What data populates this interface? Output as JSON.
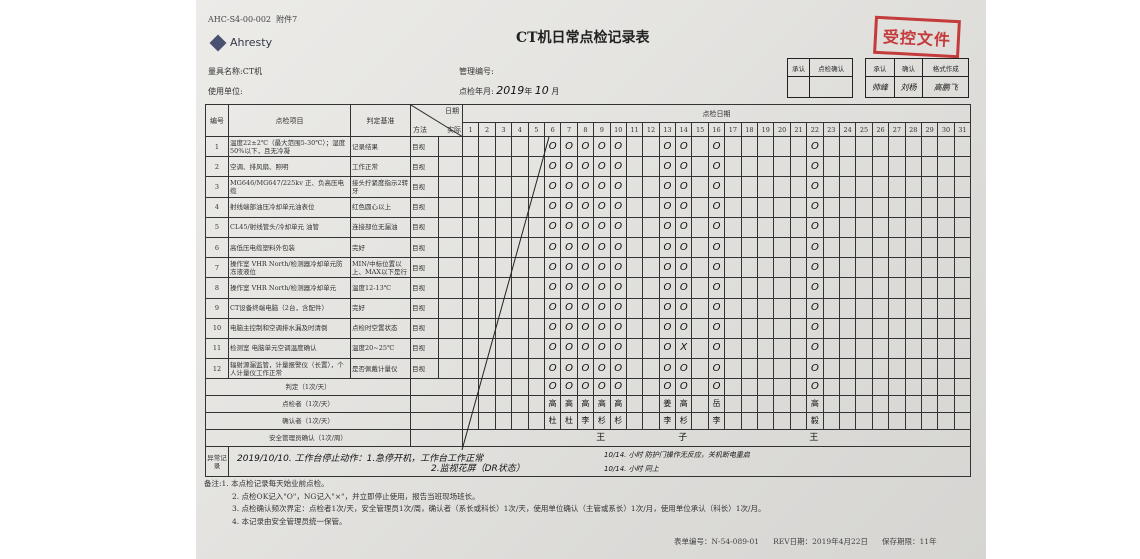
{
  "header": {
    "doc_code": "AHC-S4-00-002",
    "attachment": "附件7",
    "logo_text": "Ahresty",
    "title": "CT机日常点检记录表",
    "stamp": "受控文件",
    "equipment_label": "量具名称:",
    "equipment_value": "CT机",
    "unit_label": "使用单位:",
    "mgmt_no_label": "管理编号:",
    "month_label": "点检年月:",
    "month_value_year": "2019",
    "month_value_year_unit": "年",
    "month_value_month": "10",
    "month_value_month_unit": "月",
    "approval_box": {
      "approve": "承认",
      "check_confirm": "点检确认"
    },
    "format_box": {
      "approve": "承认",
      "confirm": "确认",
      "made_by": "格式作成",
      "approve_sig": "帅峰",
      "confirm_sig": "刘杨",
      "made_by_sig": "高鹏飞"
    }
  },
  "table": {
    "col_no": "编号",
    "col_item": "点检项目",
    "col_criterion": "判定基准",
    "col_date": "日期",
    "col_method": "方法",
    "col_actual": "实际",
    "col_days": "点检日期",
    "days": [
      "1",
      "2",
      "3",
      "4",
      "5",
      "6",
      "7",
      "8",
      "9",
      "10",
      "11",
      "12",
      "13",
      "14",
      "15",
      "16",
      "17",
      "18",
      "19",
      "20",
      "21",
      "22",
      "23",
      "24",
      "25",
      "26",
      "27",
      "28",
      "29",
      "30",
      "31"
    ],
    "items": [
      {
        "no": "1",
        "item": "温度22±2℃（最大范围5-30℃）；湿度50%以下，且无冷凝",
        "criterion": "记录结果",
        "method": "目视",
        "marks": [
          "",
          "",
          "",
          "",
          "",
          "O",
          "O",
          "O",
          "O",
          "O",
          "",
          "",
          "O",
          "O",
          "",
          "O",
          "",
          "",
          "",
          "",
          "",
          "O",
          "",
          "",
          "",
          "",
          "",
          "",
          "",
          "",
          ""
        ]
      },
      {
        "no": "2",
        "item": "空调、排风扇、照明",
        "criterion": "工作正常",
        "method": "目视",
        "marks": [
          "",
          "",
          "",
          "",
          "",
          "O",
          "O",
          "O",
          "O",
          "O",
          "",
          "",
          "O",
          "O",
          "",
          "O",
          "",
          "",
          "",
          "",
          "",
          "O",
          "",
          "",
          "",
          "",
          "",
          "",
          "",
          "",
          ""
        ]
      },
      {
        "no": "3",
        "item": "MG646/MG647/225kv 正、负高压电缆",
        "criterion": "接头拧紧度指示2转牙",
        "method": "目视",
        "marks": [
          "",
          "",
          "",
          "",
          "",
          "O",
          "O",
          "O",
          "O",
          "O",
          "",
          "",
          "O",
          "O",
          "",
          "O",
          "",
          "",
          "",
          "",
          "",
          "O",
          "",
          "",
          "",
          "",
          "",
          "",
          "",
          "",
          ""
        ]
      },
      {
        "no": "4",
        "item": "射线端部油压冷却单元油表位",
        "criterion": "红色圆心以上",
        "method": "目视",
        "marks": [
          "",
          "",
          "",
          "",
          "",
          "O",
          "O",
          "O",
          "O",
          "O",
          "",
          "",
          "O",
          "O",
          "",
          "O",
          "",
          "",
          "",
          "",
          "",
          "O",
          "",
          "",
          "",
          "",
          "",
          "",
          "",
          "",
          ""
        ]
      },
      {
        "no": "5",
        "item": "CL45/射线管头/冷却单元 油管",
        "criterion": "连接部位无漏油",
        "method": "目视",
        "marks": [
          "",
          "",
          "",
          "",
          "",
          "O",
          "O",
          "O",
          "O",
          "O",
          "",
          "",
          "O",
          "O",
          "",
          "O",
          "",
          "",
          "",
          "",
          "",
          "O",
          "",
          "",
          "",
          "",
          "",
          "",
          "",
          "",
          ""
        ]
      },
      {
        "no": "6",
        "item": "高低压电缆塑料外包装",
        "criterion": "完好",
        "method": "目视",
        "marks": [
          "",
          "",
          "",
          "",
          "",
          "O",
          "O",
          "O",
          "O",
          "O",
          "",
          "",
          "O",
          "O",
          "",
          "O",
          "",
          "",
          "",
          "",
          "",
          "O",
          "",
          "",
          "",
          "",
          "",
          "",
          "",
          "",
          ""
        ]
      },
      {
        "no": "7",
        "item": "操作室 VHR North/检测器冷却单元防冻液液位",
        "criterion": "MIN/中标位置以上、MAX以下是行",
        "method": "目视",
        "marks": [
          "",
          "",
          "",
          "",
          "",
          "O",
          "O",
          "O",
          "O",
          "O",
          "",
          "",
          "O",
          "O",
          "",
          "O",
          "",
          "",
          "",
          "",
          "",
          "O",
          "",
          "",
          "",
          "",
          "",
          "",
          "",
          "",
          ""
        ]
      },
      {
        "no": "8",
        "item": "操作室 VHR North/检测器冷却单元",
        "criterion": "温度12-13℃",
        "method": "目视",
        "marks": [
          "",
          "",
          "",
          "",
          "",
          "O",
          "O",
          "O",
          "O",
          "O",
          "",
          "",
          "O",
          "O",
          "",
          "O",
          "",
          "",
          "",
          "",
          "",
          "O",
          "",
          "",
          "",
          "",
          "",
          "",
          "",
          "",
          ""
        ]
      },
      {
        "no": "9",
        "item": "CT设备终端电脑（2台，含配件）",
        "criterion": "完好",
        "method": "目视",
        "marks": [
          "",
          "",
          "",
          "",
          "",
          "O",
          "O",
          "O",
          "O",
          "O",
          "",
          "",
          "O",
          "O",
          "",
          "O",
          "",
          "",
          "",
          "",
          "",
          "O",
          "",
          "",
          "",
          "",
          "",
          "",
          "",
          "",
          ""
        ]
      },
      {
        "no": "10",
        "item": "电脑主控制和空调排水漏及时清倒",
        "criterion": "点检时空置状态",
        "method": "目视",
        "marks": [
          "",
          "",
          "",
          "",
          "",
          "O",
          "O",
          "O",
          "O",
          "O",
          "",
          "",
          "O",
          "O",
          "",
          "O",
          "",
          "",
          "",
          "",
          "",
          "O",
          "",
          "",
          "",
          "",
          "",
          "",
          "",
          "",
          ""
        ]
      },
      {
        "no": "11",
        "item": "检测室 电脑单元空调温度确认",
        "criterion": "温度20~25℃",
        "method": "目视",
        "marks": [
          "",
          "",
          "",
          "",
          "",
          "O",
          "O",
          "O",
          "O",
          "O",
          "",
          "",
          "O",
          "X",
          "",
          "O",
          "",
          "",
          "",
          "",
          "",
          "O",
          "",
          "",
          "",
          "",
          "",
          "",
          "",
          "",
          ""
        ]
      },
      {
        "no": "12",
        "item": "辐射源漏监管，计量报警仪（长置），个人计量仪工作正常",
        "criterion": "是否佩戴计量仪",
        "method": "目视",
        "marks": [
          "",
          "",
          "",
          "",
          "",
          "O",
          "O",
          "O",
          "O",
          "O",
          "",
          "",
          "O",
          "O",
          "",
          "O",
          "",
          "",
          "",
          "",
          "",
          "O",
          "",
          "",
          "",
          "",
          "",
          "",
          "",
          "",
          ""
        ]
      }
    ],
    "summary": [
      {
        "label": "判定（1次/天）",
        "marks": [
          "",
          "",
          "",
          "",
          "",
          "O",
          "O",
          "O",
          "O",
          "O",
          "",
          "",
          "O",
          "O",
          "",
          "O",
          "",
          "",
          "",
          "",
          "",
          "O",
          "",
          "",
          "",
          "",
          "",
          "",
          "",
          "",
          ""
        ]
      },
      {
        "label": "点检者（1次/天）",
        "marks": [
          "",
          "",
          "",
          "",
          "",
          "高",
          "高",
          "高",
          "高",
          "高",
          "",
          "",
          "姜",
          "高",
          "",
          "岳",
          "",
          "",
          "",
          "",
          "",
          "高",
          "",
          "",
          "",
          "",
          "",
          "",
          "",
          "",
          ""
        ]
      },
      {
        "label": "确认者（1次/天）",
        "marks": [
          "",
          "",
          "",
          "",
          "",
          "杜",
          "杜",
          "李",
          "杉",
          "杉",
          "",
          "",
          "李",
          "杉",
          "",
          "李",
          "",
          "",
          "",
          "",
          "",
          "毅",
          "",
          "",
          "",
          "",
          "",
          "",
          "",
          "",
          ""
        ]
      },
      {
        "label": "安全管理员确认（1次/周）",
        "week_signs": [
          "王",
          "子",
          "王"
        ]
      }
    ],
    "abnormal_label": "异常记录",
    "abnormal_line1": "2019/10/10. 工作台停止动作：1.急停开机，工作台工作正常",
    "abnormal_line2": "2.监视花屏（DR状态）",
    "abnormal_line3": "10/14. 小时 防护门操作无反应，关机断电重启",
    "abnormal_line4": "10/14. 小时 同上"
  },
  "notes": [
    "备注:1. 本点检记录每天始业前点检。",
    "2. 点检OK记入\"O\"，NG记入\"×\"，并立即停止使用，报告当班现场班长。",
    "3. 点检确认频次界定：点检者1次/天，安全管理员1次/周，确认者（系长或科长）1次/天，使用单位确认（主管或系长）1次/月，使用单位承认（科长）1次/月。",
    "4. 本记录由安全管理员统一保管。"
  ],
  "footer": {
    "form_no": "表单编号：N-54-089-01",
    "rev_date": "REV日期：2019年4月22日",
    "retention": "保存期限：11年"
  },
  "colors": {
    "stamp": "#c43b3b",
    "ink": "#111111",
    "grid": "#333333"
  }
}
